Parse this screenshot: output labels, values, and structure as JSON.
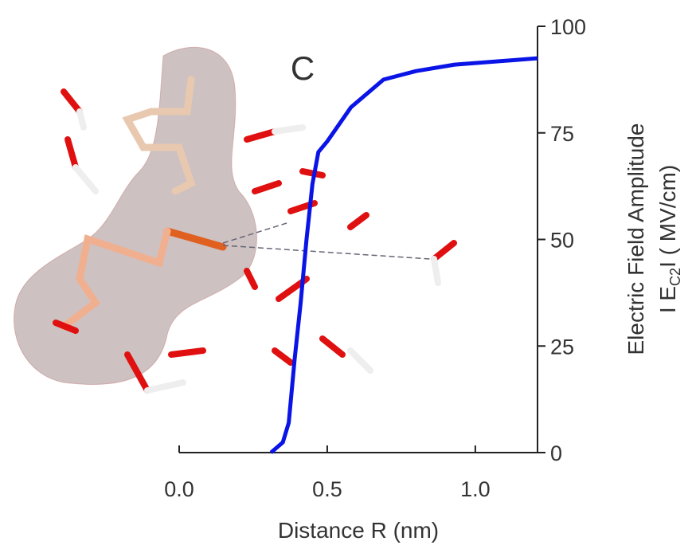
{
  "chart_data": {
    "type": "line",
    "panel_label": "C",
    "x_label": "Distance R (nm)",
    "y_label": "Electric Field Amplitude",
    "y_label_2": {
      "prefix": "I E",
      "sub": "C2",
      "suffix": "I  ( MV/cm)"
    },
    "x": [
      0.31,
      0.35,
      0.37,
      0.39,
      0.41,
      0.43,
      0.45,
      0.47,
      0.5,
      0.58,
      0.69,
      0.8,
      0.93,
      1.21
    ],
    "series": [
      {
        "color": "#0a14e6",
        "values": [
          0,
          2.4,
          7,
          22,
          35,
          50,
          63,
          70.5,
          73,
          81,
          87.5,
          89.5,
          91,
          92.5
        ]
      }
    ],
    "xlim": [
      0,
      1.21
    ],
    "xticks": [
      {
        "value": 0,
        "label": "0.0"
      },
      0.5,
      {
        "value": 1,
        "label": "1.0"
      }
    ],
    "ylim": [
      0,
      100
    ],
    "yticks": [
      0,
      25,
      50,
      75,
      100
    ],
    "y_axis_side": "right"
  }
}
